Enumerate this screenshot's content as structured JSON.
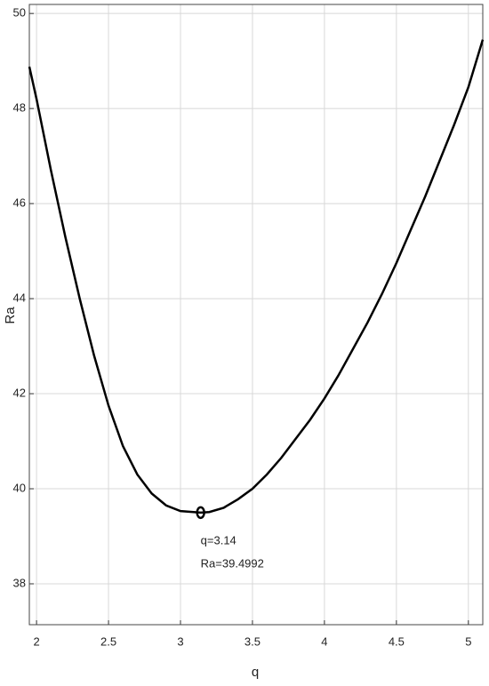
{
  "chart_data": {
    "type": "line",
    "xlabel": "q",
    "ylabel": "Ra",
    "x": [
      1.95,
      2.0,
      2.1,
      2.2,
      2.3,
      2.4,
      2.5,
      2.6,
      2.7,
      2.8,
      2.9,
      3.0,
      3.14,
      3.2,
      3.3,
      3.4,
      3.5,
      3.6,
      3.7,
      3.8,
      3.9,
      4.0,
      4.1,
      4.2,
      4.3,
      4.4,
      4.5,
      4.6,
      4.7,
      4.8,
      4.9,
      5.0,
      5.1
    ],
    "series": [
      {
        "color": "#000000",
        "values": [
          48.88,
          48.2,
          46.7,
          45.3,
          44.0,
          42.8,
          41.75,
          40.9,
          40.3,
          39.9,
          39.65,
          39.53,
          39.4992,
          39.51,
          39.6,
          39.78,
          40.0,
          40.3,
          40.65,
          41.05,
          41.45,
          41.9,
          42.4,
          42.95,
          43.5,
          44.1,
          44.75,
          45.45,
          46.15,
          46.9,
          47.65,
          48.45,
          49.45
        ]
      }
    ],
    "xlim": [
      1.95,
      5.1
    ],
    "ylim": [
      37.14,
      50.19
    ],
    "xticks": [
      2,
      2.5,
      3,
      3.5,
      4,
      4.5,
      5
    ],
    "yticks": [
      38,
      40,
      42,
      44,
      46,
      48,
      50
    ],
    "grid": true,
    "annotation": {
      "x": 3.14,
      "y": 39.4992,
      "lines": [
        "q=3.14",
        "Ra=39.4992"
      ]
    }
  }
}
